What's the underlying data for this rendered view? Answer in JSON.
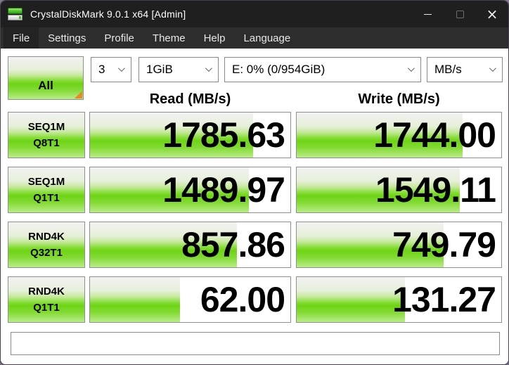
{
  "window": {
    "title": "CrystalDiskMark 9.0.1 x64 [Admin]",
    "controls": {
      "minimize": "minimize",
      "maximize": "maximize",
      "close": "close"
    }
  },
  "menu": {
    "items": [
      "File",
      "Settings",
      "Profile",
      "Theme",
      "Help",
      "Language"
    ]
  },
  "toolbar": {
    "all_button_label": "All",
    "test_count": "3",
    "test_size": "1GiB",
    "target_drive": "E: 0% (0/954GiB)",
    "unit": "MB/s"
  },
  "columns": {
    "read_header": "Read (MB/s)",
    "write_header": "Write (MB/s)"
  },
  "results": [
    {
      "test": "SEQ1M",
      "queue_thread": "Q8T1",
      "read": "1785.63",
      "write": "1744.00"
    },
    {
      "test": "SEQ1M",
      "queue_thread": "Q1T1",
      "read": "1489.97",
      "write": "1549.11"
    },
    {
      "test": "RND4K",
      "queue_thread": "Q32T1",
      "read": "857.86",
      "write": "749.79"
    },
    {
      "test": "RND4K",
      "queue_thread": "Q1T1",
      "read": "62.00",
      "write": "131.27"
    }
  ],
  "comment": {
    "value": ""
  },
  "colors": {
    "accent_green": "#6ed414",
    "corner_orange": "#e8872b",
    "titlebar_bg": "#1f1f1f",
    "menubar_bg": "#2d2d2d"
  }
}
